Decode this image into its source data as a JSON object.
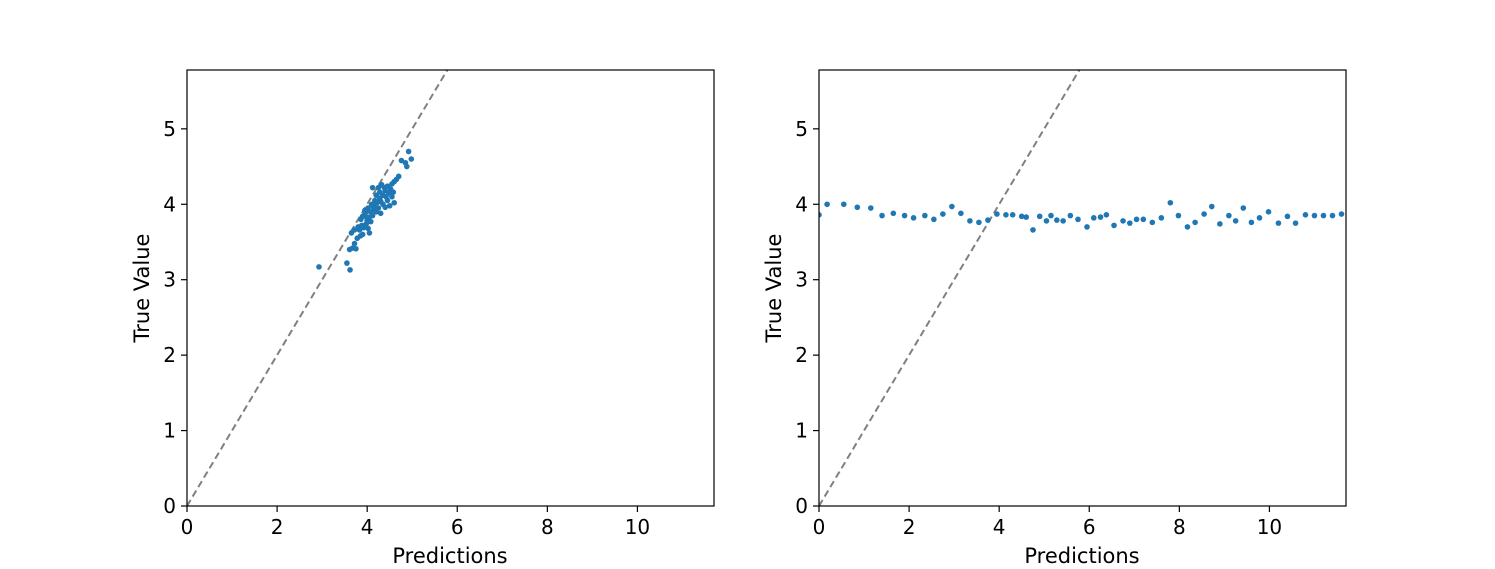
{
  "colors": {
    "points": "#1f77b4",
    "identity_line": "#808080",
    "frame": "#000000",
    "background": "#ffffff"
  },
  "chart_data": [
    {
      "type": "scatter",
      "title": "",
      "xlabel": "Predictions",
      "ylabel": "True Value",
      "xlim": [
        0,
        11.7
      ],
      "ylim": [
        0,
        5.78
      ],
      "xticks": [
        0,
        2,
        4,
        6,
        8,
        10
      ],
      "yticks": [
        0,
        1,
        2,
        3,
        4,
        5
      ],
      "grid": false,
      "reference_line": {
        "style": "dashed",
        "slope": 1,
        "intercept": 0
      },
      "points": [
        [
          2.93,
          3.17
        ],
        [
          3.55,
          3.22
        ],
        [
          3.62,
          3.13
        ],
        [
          3.61,
          3.4
        ],
        [
          3.68,
          3.42
        ],
        [
          3.72,
          3.48
        ],
        [
          3.75,
          3.41
        ],
        [
          3.78,
          3.55
        ],
        [
          3.85,
          3.58
        ],
        [
          3.65,
          3.62
        ],
        [
          3.72,
          3.66
        ],
        [
          3.8,
          3.7
        ],
        [
          3.83,
          3.66
        ],
        [
          3.88,
          3.72
        ],
        [
          3.92,
          3.69
        ],
        [
          3.98,
          3.74
        ],
        [
          4.02,
          3.68
        ],
        [
          4.05,
          3.62
        ],
        [
          3.86,
          3.8
        ],
        [
          3.9,
          3.84
        ],
        [
          3.95,
          3.86
        ],
        [
          4.0,
          3.8
        ],
        [
          4.05,
          3.83
        ],
        [
          4.08,
          3.77
        ],
        [
          4.12,
          3.85
        ],
        [
          3.95,
          3.92
        ],
        [
          4.02,
          3.95
        ],
        [
          4.08,
          3.9
        ],
        [
          4.15,
          3.98
        ],
        [
          4.2,
          3.9
        ],
        [
          4.25,
          3.95
        ],
        [
          4.3,
          3.88
        ],
        [
          4.1,
          4.0
        ],
        [
          4.17,
          4.05
        ],
        [
          4.22,
          4.02
        ],
        [
          4.28,
          4.08
        ],
        [
          4.35,
          4.0
        ],
        [
          4.4,
          3.96
        ],
        [
          4.45,
          4.05
        ],
        [
          4.5,
          3.98
        ],
        [
          4.2,
          4.12
        ],
        [
          4.28,
          4.16
        ],
        [
          4.35,
          4.12
        ],
        [
          4.4,
          4.18
        ],
        [
          4.48,
          4.15
        ],
        [
          4.55,
          4.1
        ],
        [
          4.6,
          4.02
        ],
        [
          4.25,
          4.22
        ],
        [
          4.32,
          4.26
        ],
        [
          4.38,
          4.22
        ],
        [
          4.45,
          4.24
        ],
        [
          4.52,
          4.2
        ],
        [
          4.58,
          4.16
        ],
        [
          4.6,
          4.3
        ],
        [
          4.65,
          4.33
        ],
        [
          4.7,
          4.37
        ],
        [
          4.76,
          4.58
        ],
        [
          4.85,
          4.55
        ],
        [
          4.92,
          4.7
        ],
        [
          4.98,
          4.6
        ],
        [
          4.88,
          4.5
        ],
        [
          4.12,
          4.22
        ],
        [
          4.0,
          3.78
        ],
        [
          3.9,
          3.6
        ],
        [
          4.18,
          3.93
        ],
        [
          4.3,
          4.04
        ],
        [
          4.42,
          4.1
        ],
        [
          4.55,
          4.27
        ],
        [
          3.98,
          3.9
        ],
        [
          4.14,
          3.96
        ]
      ]
    },
    {
      "type": "scatter",
      "title": "",
      "xlabel": "Predictions",
      "ylabel": "True Value",
      "xlim": [
        0,
        11.7
      ],
      "ylim": [
        0,
        5.78
      ],
      "xticks": [
        0,
        2,
        4,
        6,
        8,
        10
      ],
      "yticks": [
        0,
        1,
        2,
        3,
        4,
        5
      ],
      "grid": false,
      "reference_line": {
        "style": "dashed",
        "slope": 1,
        "intercept": 0
      },
      "points": [
        [
          0.0,
          3.86
        ],
        [
          0.18,
          4.0
        ],
        [
          0.55,
          4.0
        ],
        [
          0.85,
          3.96
        ],
        [
          1.15,
          3.95
        ],
        [
          1.4,
          3.85
        ],
        [
          1.65,
          3.88
        ],
        [
          1.9,
          3.85
        ],
        [
          2.1,
          3.82
        ],
        [
          2.35,
          3.85
        ],
        [
          2.55,
          3.8
        ],
        [
          2.75,
          3.87
        ],
        [
          2.95,
          3.97
        ],
        [
          3.15,
          3.88
        ],
        [
          3.35,
          3.78
        ],
        [
          3.55,
          3.76
        ],
        [
          3.75,
          3.79
        ],
        [
          3.95,
          3.87
        ],
        [
          4.15,
          3.86
        ],
        [
          4.3,
          3.86
        ],
        [
          4.5,
          3.84
        ],
        [
          4.6,
          3.83
        ],
        [
          4.75,
          3.66
        ],
        [
          4.9,
          3.84
        ],
        [
          5.05,
          3.78
        ],
        [
          5.15,
          3.85
        ],
        [
          5.28,
          3.79
        ],
        [
          5.42,
          3.78
        ],
        [
          5.58,
          3.85
        ],
        [
          5.75,
          3.8
        ],
        [
          5.95,
          3.7
        ],
        [
          6.1,
          3.82
        ],
        [
          6.25,
          3.83
        ],
        [
          6.38,
          3.86
        ],
        [
          6.55,
          3.72
        ],
        [
          6.75,
          3.78
        ],
        [
          6.9,
          3.75
        ],
        [
          7.05,
          3.8
        ],
        [
          7.2,
          3.8
        ],
        [
          7.4,
          3.76
        ],
        [
          7.6,
          3.82
        ],
        [
          7.8,
          4.02
        ],
        [
          7.98,
          3.85
        ],
        [
          8.18,
          3.7
        ],
        [
          8.35,
          3.76
        ],
        [
          8.55,
          3.87
        ],
        [
          8.72,
          3.97
        ],
        [
          8.9,
          3.74
        ],
        [
          9.1,
          3.85
        ],
        [
          9.25,
          3.78
        ],
        [
          9.42,
          3.95
        ],
        [
          9.6,
          3.76
        ],
        [
          9.78,
          3.82
        ],
        [
          9.98,
          3.9
        ],
        [
          10.2,
          3.75
        ],
        [
          10.4,
          3.84
        ],
        [
          10.58,
          3.75
        ],
        [
          10.8,
          3.86
        ],
        [
          11.0,
          3.85
        ],
        [
          11.2,
          3.85
        ],
        [
          11.4,
          3.85
        ],
        [
          11.6,
          3.87
        ]
      ]
    }
  ]
}
